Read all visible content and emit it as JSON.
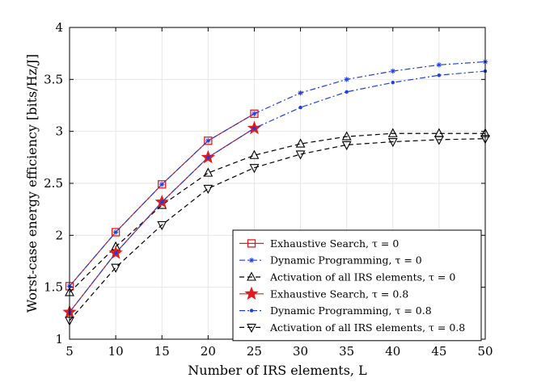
{
  "chart_data": {
    "type": "line",
    "xlabel": "Number of IRS elements, L",
    "ylabel": "Worst-case energy efficiency [bits/Hz/J]",
    "xlim": [
      5,
      50
    ],
    "ylim": [
      1,
      4
    ],
    "xticks": [
      5,
      10,
      15,
      20,
      25,
      30,
      35,
      40,
      45,
      50
    ],
    "yticks": [
      1,
      1.5,
      2,
      2.5,
      3,
      3.5,
      4
    ],
    "ytick_labels": [
      "1",
      "1.5",
      "2",
      "2.5",
      "3",
      "3.5",
      "4"
    ],
    "grid": true,
    "legend_position": "bottom-right",
    "series": [
      {
        "name": "Exhaustive Search, τ = 0",
        "color": "#e41a1c",
        "line": "solid",
        "marker": "square",
        "x": [
          5,
          10,
          15,
          20,
          25
        ],
        "y": [
          1.51,
          2.03,
          2.49,
          2.91,
          3.17
        ]
      },
      {
        "name": "Dynamic Programming, τ = 0",
        "color": "#1f3fdd",
        "line": "dashdot",
        "marker": "asterisk",
        "x": [
          5,
          10,
          15,
          20,
          25,
          30,
          35,
          40,
          45,
          50
        ],
        "y": [
          1.51,
          2.03,
          2.49,
          2.91,
          3.17,
          3.37,
          3.5,
          3.58,
          3.64,
          3.67
        ]
      },
      {
        "name": "Activation of all IRS elements, τ = 0",
        "color": "#000000",
        "line": "dashed",
        "marker": "triangle-up",
        "x": [
          5,
          10,
          15,
          20,
          25,
          30,
          35,
          40,
          45,
          50
        ],
        "y": [
          1.45,
          1.89,
          2.29,
          2.6,
          2.77,
          2.88,
          2.95,
          2.98,
          2.98,
          2.98
        ]
      },
      {
        "name": "Exhaustive Search, τ = 0.8",
        "color": "#e41a1c",
        "line": "solid",
        "marker": "star",
        "x": [
          5,
          10,
          15,
          20,
          25
        ],
        "y": [
          1.26,
          1.83,
          2.32,
          2.75,
          3.03
        ]
      },
      {
        "name": "Dynamic Programming, τ = 0.8",
        "color": "#1f3fdd",
        "line": "dashdot",
        "marker": "dot",
        "x": [
          5,
          10,
          15,
          20,
          25,
          30,
          35,
          40,
          45,
          50
        ],
        "y": [
          1.26,
          1.83,
          2.32,
          2.75,
          3.03,
          3.23,
          3.38,
          3.47,
          3.54,
          3.58
        ]
      },
      {
        "name": "Activation of all IRS elements, τ = 0.8",
        "color": "#000000",
        "line": "dashed",
        "marker": "triangle-down",
        "x": [
          5,
          10,
          15,
          20,
          25,
          30,
          35,
          40,
          45,
          50
        ],
        "y": [
          1.18,
          1.69,
          2.1,
          2.45,
          2.65,
          2.78,
          2.87,
          2.9,
          2.92,
          2.93
        ]
      }
    ]
  }
}
